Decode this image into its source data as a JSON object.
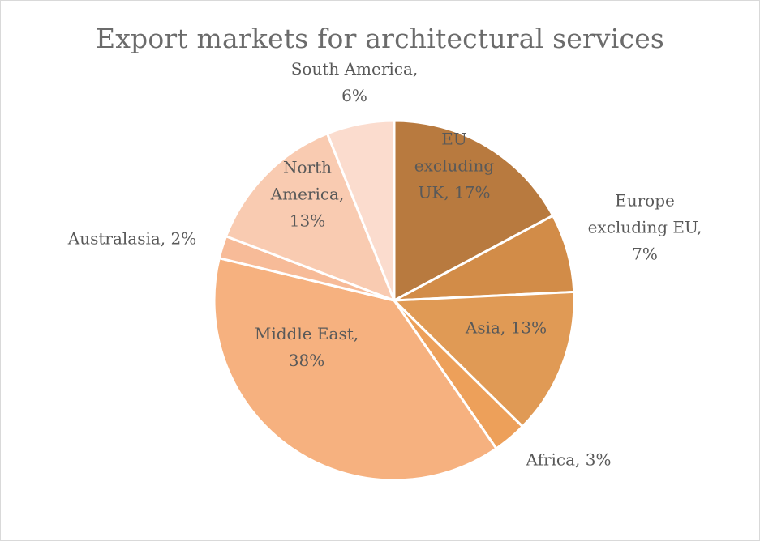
{
  "chart_data": {
    "type": "pie",
    "title": "Export markets for architectural services",
    "slices": [
      {
        "name": "EU excluding UK",
        "value": 17,
        "label_lines": [
          "EU",
          "excluding",
          "UK, 17%"
        ],
        "color": "#b87a3f"
      },
      {
        "name": "Europe excluding EU",
        "value": 7,
        "label_lines": [
          "Europe",
          "excluding EU,",
          "7%"
        ],
        "color": "#d28c48"
      },
      {
        "name": "Asia",
        "value": 13,
        "label_lines": [
          "Asia, 13%"
        ],
        "color": "#e09a55"
      },
      {
        "name": "Africa",
        "value": 3,
        "label_lines": [
          "Africa, 3%"
        ],
        "color": "#eda05a"
      },
      {
        "name": "Middle East",
        "value": 38,
        "label_lines": [
          "Middle East,",
          "38%"
        ],
        "color": "#f6b17f"
      },
      {
        "name": "Australasia",
        "value": 2,
        "label_lines": [
          "Australasia, 2%"
        ],
        "color": "#f7bb98"
      },
      {
        "name": "North America",
        "value": 13,
        "label_lines": [
          "North",
          "America,",
          "13%"
        ],
        "color": "#f9cbb1"
      },
      {
        "name": "South America",
        "value": 6,
        "label_lines": [
          "South America,",
          "6%"
        ],
        "color": "#fbdcce"
      }
    ],
    "start_angle_deg": 0,
    "direction": "clockwise",
    "legend": "none"
  }
}
